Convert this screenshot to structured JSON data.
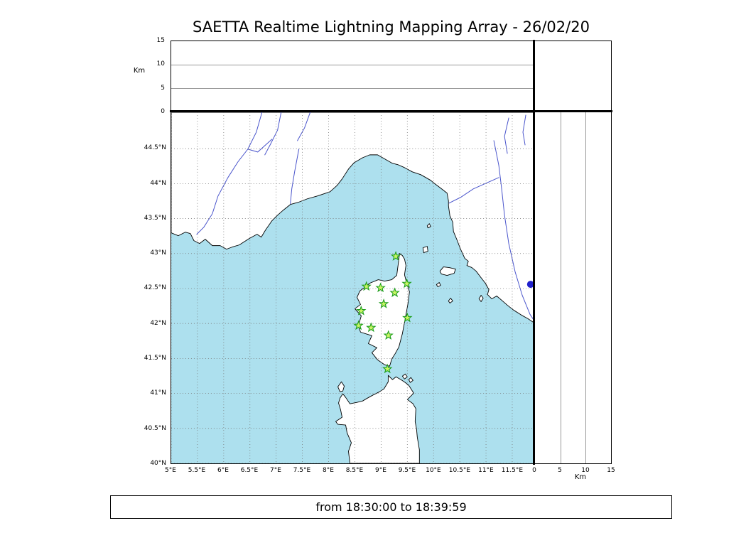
{
  "title": "SAETTA Realtime Lightning Mapping Array - 26/02/20",
  "footer": "from 18:30:00 to 18:39:59",
  "colors": {
    "sea": "#ade0ee",
    "land": "#ffffff",
    "coast": "#000000",
    "river": "#4a55cc",
    "grid": "#777777",
    "panel_grid": "#999999",
    "station_fill": "#c8f564",
    "station_edge": "#1e9e1e",
    "dot": "#2020cc"
  },
  "map": {
    "lon_min": 5.0,
    "lon_max": 11.92,
    "lat_min": 40.0,
    "lat_max": 45.02,
    "lon_ticks": [
      {
        "v": 5,
        "label": "5°E"
      },
      {
        "v": 5.5,
        "label": "5.5°E"
      },
      {
        "v": 6,
        "label": "6°E"
      },
      {
        "v": 6.5,
        "label": "6.5°E"
      },
      {
        "v": 7,
        "label": "7°E"
      },
      {
        "v": 7.5,
        "label": "7.5°E"
      },
      {
        "v": 8,
        "label": "8°E"
      },
      {
        "v": 8.5,
        "label": "8.5°E"
      },
      {
        "v": 9,
        "label": "9°E"
      },
      {
        "v": 9.5,
        "label": "9.5°E"
      },
      {
        "v": 10,
        "label": "10°E"
      },
      {
        "v": 10.5,
        "label": "10.5°E"
      },
      {
        "v": 11,
        "label": "11°E"
      },
      {
        "v": 11.5,
        "label": "11.5°E"
      }
    ],
    "lat_ticks": [
      {
        "v": 40,
        "label": "40°N"
      },
      {
        "v": 40.5,
        "label": "40.5°N"
      },
      {
        "v": 41,
        "label": "41°N"
      },
      {
        "v": 41.5,
        "label": "41.5°N"
      },
      {
        "v": 42,
        "label": "42°N"
      },
      {
        "v": 42.5,
        "label": "42.5°N"
      },
      {
        "v": 43,
        "label": "43°N"
      },
      {
        "v": 43.5,
        "label": "43.5°N"
      },
      {
        "v": 44,
        "label": "44°N"
      },
      {
        "v": 44.5,
        "label": "44.5°N"
      }
    ]
  },
  "altitude": {
    "axis_label": "Km",
    "min": 0,
    "max": 15,
    "ticks": [
      {
        "v": 0,
        "label": "0"
      },
      {
        "v": 5,
        "label": "5"
      },
      {
        "v": 10,
        "label": "10"
      },
      {
        "v": 15,
        "label": "15"
      }
    ],
    "grid_values": [
      5,
      10
    ]
  },
  "stations": [
    {
      "lat": 42.96,
      "lon": 9.28
    },
    {
      "lat": 42.53,
      "lon": 8.72
    },
    {
      "lat": 42.51,
      "lon": 8.99
    },
    {
      "lat": 42.44,
      "lon": 9.26
    },
    {
      "lat": 42.57,
      "lon": 9.49
    },
    {
      "lat": 42.28,
      "lon": 9.05
    },
    {
      "lat": 42.18,
      "lon": 8.62
    },
    {
      "lat": 42.08,
      "lon": 9.5
    },
    {
      "lat": 41.97,
      "lon": 8.57
    },
    {
      "lat": 41.94,
      "lon": 8.81
    },
    {
      "lat": 41.83,
      "lon": 9.14
    },
    {
      "lat": 41.35,
      "lon": 9.12
    }
  ],
  "blue_dot": {
    "lat": 42.56,
    "lon": 11.85
  }
}
